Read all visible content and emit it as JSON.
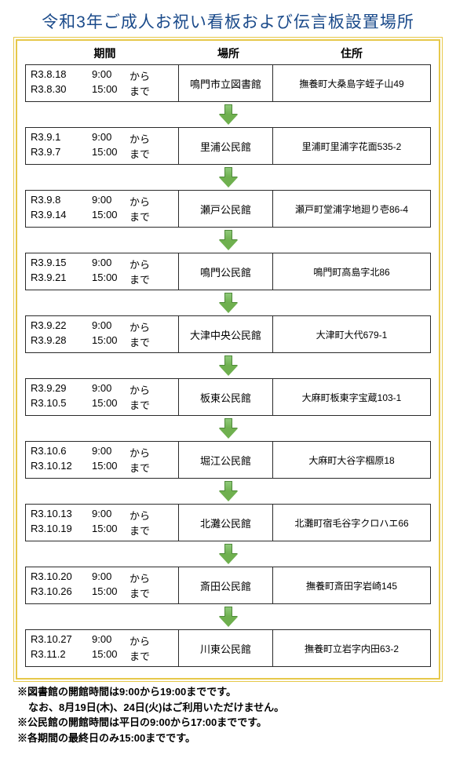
{
  "title": "令和3年ご成人お祝い看板および伝言板設置場所",
  "headers": {
    "period": "期間",
    "place": "場所",
    "address": "住所"
  },
  "rows": [
    {
      "date1": "R3.8.18",
      "time1": "9:00",
      "sfx1": "から",
      "date2": "R3.8.30",
      "time2": "15:00",
      "sfx2": "まで",
      "place": "鳴門市立図書館",
      "addr": "撫養町大桑島字蛭子山49"
    },
    {
      "date1": "R3.9.1",
      "time1": "9:00",
      "sfx1": "から",
      "date2": "R3.9.7",
      "time2": "15:00",
      "sfx2": "まで",
      "place": "里浦公民館",
      "addr": "里浦町里浦字花面535-2"
    },
    {
      "date1": "R3.9.8",
      "time1": "9:00",
      "sfx1": "から",
      "date2": "R3.9.14",
      "time2": "15:00",
      "sfx2": "まで",
      "place": "瀬戸公民館",
      "addr": "瀬戸町堂浦字地廻り壱86-4"
    },
    {
      "date1": "R3.9.15",
      "time1": "9:00",
      "sfx1": "から",
      "date2": "R3.9.21",
      "time2": "15:00",
      "sfx2": "まで",
      "place": "鳴門公民館",
      "addr": "鳴門町高島字北86"
    },
    {
      "date1": "R3.9.22",
      "time1": "9:00",
      "sfx1": "から",
      "date2": "R3.9.28",
      "time2": "15:00",
      "sfx2": "まで",
      "place": "大津中央公民館",
      "addr": "大津町大代679-1"
    },
    {
      "date1": "R3.9.29",
      "time1": "9:00",
      "sfx1": "から",
      "date2": "R3.10.5",
      "time2": "15:00",
      "sfx2": "まで",
      "place": "板東公民館",
      "addr": "大麻町板東字宝蔵103-1"
    },
    {
      "date1": "R3.10.6",
      "time1": "9:00",
      "sfx1": "から",
      "date2": "R3.10.12",
      "time2": "15:00",
      "sfx2": "まで",
      "place": "堀江公民館",
      "addr": "大麻町大谷字椢原18"
    },
    {
      "date1": "R3.10.13",
      "time1": "9:00",
      "sfx1": "から",
      "date2": "R3.10.19",
      "time2": "15:00",
      "sfx2": "まで",
      "place": "北灘公民館",
      "addr": "北灘町宿毛谷字クロハエ66"
    },
    {
      "date1": "R3.10.20",
      "time1": "9:00",
      "sfx1": "から",
      "date2": "R3.10.26",
      "time2": "15:00",
      "sfx2": "まで",
      "place": "斎田公民館",
      "addr": "撫養町斎田字岩崎145"
    },
    {
      "date1": "R3.10.27",
      "time1": "9:00",
      "sfx1": "から",
      "date2": "R3.11.2",
      "time2": "15:00",
      "sfx2": "まで",
      "place": "川東公民館",
      "addr": "撫養町立岩字内田63-2"
    }
  ],
  "notes": {
    "n1": "※図書館の開館時間は9:00から19:00までです。",
    "n1b": "なお、8月19日(木)、24日(火)はご利用いただけません。",
    "n2": "※公民館の開館時間は平日の9:00から17:00までです。",
    "n3": "※各期間の最終日のみ15:00までです。"
  },
  "colors": {
    "title": "#1a4a8a",
    "frame": "#e6c84a",
    "border": "#2a2a2a",
    "arrow_fill": "#6fb04f",
    "arrow_edge": "#4f8a3a"
  }
}
